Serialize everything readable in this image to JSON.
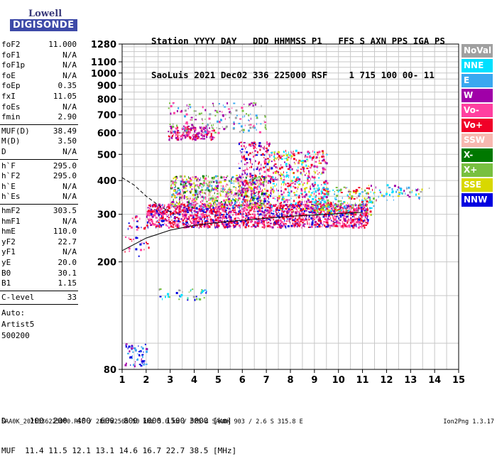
{
  "logo": {
    "line1": "Lowell",
    "line2": "DIGISONDE"
  },
  "header": {
    "labels": "Station YYYY DAY   DDD HHMMSS P1   FFS S AXN PPS IGA PS",
    "values": "SaoLuis 2021 Dec02 336 225000 RSF    1 715 100 00- 11"
  },
  "params_group1": [
    {
      "name": "foF2",
      "value": "11.000"
    },
    {
      "name": "foF1",
      "value": "N/A"
    },
    {
      "name": "foF1p",
      "value": "N/A"
    },
    {
      "name": "foE",
      "value": "N/A"
    },
    {
      "name": "foEp",
      "value": "0.35"
    },
    {
      "name": "fxI",
      "value": "11.05"
    },
    {
      "name": "foEs",
      "value": "N/A"
    },
    {
      "name": "fmin",
      "value": "2.90"
    }
  ],
  "params_group2": [
    {
      "name": "MUF(D)",
      "value": "38.49"
    },
    {
      "name": "M(D)",
      "value": "3.50"
    },
    {
      "name": "D",
      "value": "N/A"
    }
  ],
  "params_group3": [
    {
      "name": "h`F",
      "value": "295.0"
    },
    {
      "name": "h`F2",
      "value": "295.0"
    },
    {
      "name": "h`E",
      "value": "N/A"
    },
    {
      "name": "h`Es",
      "value": "N/A"
    }
  ],
  "params_group4": [
    {
      "name": "hmF2",
      "value": "303.5"
    },
    {
      "name": "hmF1",
      "value": "N/A"
    },
    {
      "name": "hmE",
      "value": "110.0"
    },
    {
      "name": "yF2",
      "value": "22.7"
    },
    {
      "name": "yF1",
      "value": "N/A"
    },
    {
      "name": "yE",
      "value": "20.0"
    },
    {
      "name": "B0",
      "value": "30.1"
    },
    {
      "name": "B1",
      "value": "1.15"
    }
  ],
  "clevel": {
    "name": "C-level",
    "value": "33"
  },
  "auto": {
    "line1": "Auto:",
    "line2": "Artist5",
    "line3": "500200"
  },
  "legend": [
    {
      "label": "NoVal",
      "color": "#a0a0a0"
    },
    {
      "label": "NNE",
      "color": "#00e0ff"
    },
    {
      "label": "E",
      "color": "#3aa8f0"
    },
    {
      "label": "W",
      "color": "#a000a8"
    },
    {
      "label": "Vo-",
      "color": "#ff40a0"
    },
    {
      "label": "Vo+",
      "color": "#f00028"
    },
    {
      "label": "SSW",
      "color": "#f8b8b0"
    },
    {
      "label": "X-",
      "color": "#007800"
    },
    {
      "label": "X+",
      "color": "#78c040"
    },
    {
      "label": "SSE",
      "color": "#d8d800"
    },
    {
      "label": "NNW",
      "color": "#0000e0"
    }
  ],
  "bottom": {
    "distance": "D     100  200  400  600  800 1000 1500 3000 [km]",
    "muf": "MUF  11.4 11.5 12.1 13.1 14.6 16.7 22.7 38.5 [MHz]"
  },
  "footer": "SAA0K_2021336225000.RSF / 280fx256h 50 kHz 5.0 km / DPS-4 SAA0K 903 / 2.6 S 315.8 E",
  "version": "Ion2Png 1.3.17",
  "chart_data": {
    "type": "scatter",
    "title": "",
    "xlabel": "",
    "ylabel": "",
    "xlim": [
      1,
      15
    ],
    "ylim": [
      80,
      1280
    ],
    "y_scale": "log",
    "x_ticks": [
      "1",
      "2",
      "3",
      "4",
      "5",
      "6",
      "7",
      "8",
      "9",
      "10",
      "11",
      "12",
      "13",
      "14",
      "15"
    ],
    "y_ticks": [
      {
        "v": 80,
        "label": "80"
      },
      {
        "v": 200,
        "label": "200"
      },
      {
        "v": 300,
        "label": "300"
      },
      {
        "v": 400,
        "label": "400"
      },
      {
        "v": 500,
        "label": "500"
      },
      {
        "v": 600,
        "label": "600"
      },
      {
        "v": 700,
        "label": "700"
      },
      {
        "v": 800,
        "label": "800"
      },
      {
        "v": 900,
        "label": "900"
      },
      {
        "v": 1000,
        "label": "1000"
      },
      {
        "v": 1100,
        "label": "1100"
      },
      {
        "v": 1280,
        "label": "1280"
      }
    ],
    "grid": true,
    "clusters": [
      {
        "x": [
          1.0,
          2.1
        ],
        "y": [
          210,
          300
        ],
        "n": 40,
        "colors": [
          "#f00028",
          "#0000e0",
          "#ff40a0"
        ]
      },
      {
        "x": [
          1.1,
          2.0
        ],
        "y": [
          82,
          100
        ],
        "n": 60,
        "colors": [
          "#0000e0",
          "#3aa8f0",
          "#a000a8"
        ]
      },
      {
        "x": [
          2.5,
          4.5
        ],
        "y": [
          145,
          160
        ],
        "n": 40,
        "colors": [
          "#a0a0a0",
          "#0000e0",
          "#78c040",
          "#00e0ff"
        ]
      },
      {
        "x": [
          2.0,
          11.2
        ],
        "y": [
          270,
          330
        ],
        "n": 1800,
        "colors": [
          "#f00028",
          "#ff40a0",
          "#a000a8",
          "#0000e0",
          "#f00028",
          "#ff40a0"
        ]
      },
      {
        "x": [
          3.0,
          7.0
        ],
        "y": [
          320,
          420
        ],
        "n": 700,
        "colors": [
          "#78c040",
          "#d8d800",
          "#007800",
          "#f8b8b0",
          "#a000a8",
          "#3aa8f0",
          "#ff40a0"
        ]
      },
      {
        "x": [
          7.0,
          9.5
        ],
        "y": [
          310,
          520
        ],
        "n": 500,
        "colors": [
          "#f00028",
          "#ff40a0",
          "#a000a8",
          "#d8d800",
          "#00e0ff"
        ]
      },
      {
        "x": [
          5.8,
          7.2
        ],
        "y": [
          330,
          560
        ],
        "n": 250,
        "colors": [
          "#f00028",
          "#ff40a0",
          "#a000a8",
          "#0000e0"
        ]
      },
      {
        "x": [
          2.9,
          4.8
        ],
        "y": [
          570,
          640
        ],
        "n": 180,
        "colors": [
          "#a000a8",
          "#f00028",
          "#ff40a0",
          "#a000a8"
        ]
      },
      {
        "x": [
          2.9,
          7.0
        ],
        "y": [
          600,
          780
        ],
        "n": 160,
        "colors": [
          "#a0a0a0",
          "#a000a8",
          "#3aa8f0",
          "#78c040",
          "#ff40a0"
        ]
      },
      {
        "x": [
          9.0,
          11.5
        ],
        "y": [
          300,
          380
        ],
        "n": 220,
        "colors": [
          "#f00028",
          "#78c040",
          "#d8d800",
          "#3aa8f0",
          "#00e0ff"
        ]
      },
      {
        "x": [
          11.2,
          13.5
        ],
        "y": [
          340,
          390
        ],
        "n": 40,
        "colors": [
          "#00e0ff",
          "#3aa8f0",
          "#a000a8",
          "#d8d800"
        ]
      },
      {
        "x": [
          12.0,
          13.8
        ],
        "y": [
          360,
          380
        ],
        "n": 20,
        "colors": [
          "#00e0ff",
          "#3aa8f0",
          "#a0a0a0"
        ]
      }
    ],
    "profile_solid": {
      "x": [
        1,
        2,
        3,
        4,
        5,
        6,
        7,
        8,
        9,
        10,
        11
      ],
      "y": [
        220,
        245,
        262,
        273,
        280,
        285,
        290,
        295,
        298,
        302,
        305
      ]
    },
    "profile_dashed": {
      "x": [
        1,
        1.5,
        2,
        2.6,
        3.2
      ],
      "y": [
        410,
        385,
        350,
        320,
        300
      ]
    }
  }
}
